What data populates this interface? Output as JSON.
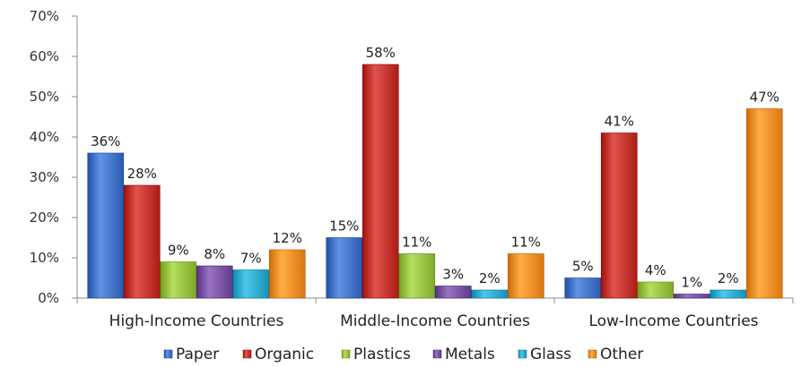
{
  "chart_data": {
    "type": "bar",
    "title": "",
    "xlabel": "",
    "ylabel": "",
    "categories": [
      "High-Income Countries",
      "Middle-Income Countries",
      "Low-Income Countries"
    ],
    "series": [
      {
        "name": "Paper",
        "values": [
          36,
          15,
          5
        ],
        "labels": [
          "36%",
          "15%",
          "5%"
        ],
        "color": "#3f6fc4"
      },
      {
        "name": "Organic",
        "values": [
          28,
          58,
          41
        ],
        "labels": [
          "28%",
          "58%",
          "41%"
        ],
        "color": "#c0302a"
      },
      {
        "name": "Plastics",
        "values": [
          9,
          11,
          4
        ],
        "labels": [
          "9%",
          "11%",
          "4%"
        ],
        "color": "#93bc3c"
      },
      {
        "name": "Metals",
        "values": [
          8,
          3,
          1
        ],
        "labels": [
          "8%",
          "3%",
          "1%"
        ],
        "color": "#7550a0"
      },
      {
        "name": "Glass",
        "values": [
          7,
          2,
          2
        ],
        "labels": [
          "7%",
          "2%",
          "2%"
        ],
        "color": "#2aa5c8"
      },
      {
        "name": "Other",
        "values": [
          12,
          11,
          47
        ],
        "labels": [
          "12%",
          "11%",
          "47%"
        ],
        "color": "#ee8a22"
      }
    ],
    "ylim": [
      0,
      70
    ],
    "yticks": [
      0,
      10,
      20,
      30,
      40,
      50,
      60,
      70
    ],
    "ytick_labels": [
      "0%",
      "10%",
      "20%",
      "30%",
      "40%",
      "50%",
      "60%",
      "70%"
    ],
    "grid": false,
    "legend_position": "bottom"
  }
}
